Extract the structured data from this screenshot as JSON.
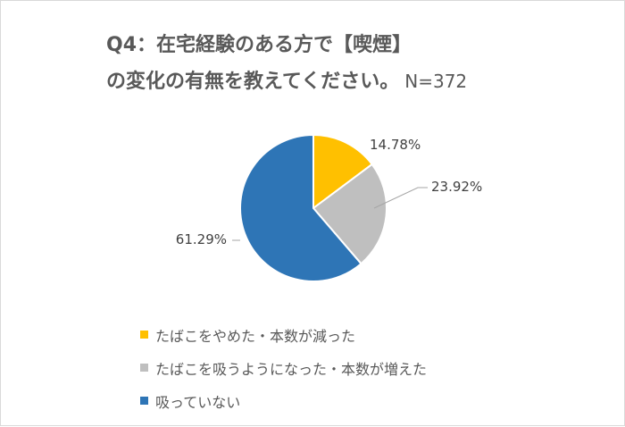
{
  "title": {
    "line1": "Q4：在宅経験のある方で【喫煙】",
    "line2": "の変化の有無を教えてください。",
    "n": "N=372"
  },
  "chart_data": {
    "type": "pie",
    "categories": [
      "たばこをやめた・本数が減った",
      "たばこを吸うようになった・本数が増えた",
      "吸っていない"
    ],
    "values": [
      14.78,
      23.92,
      61.29
    ],
    "data_labels": [
      "14.78%",
      "23.92%",
      "61.29%"
    ],
    "colors": [
      "#FFC000",
      "#BFBFBF",
      "#2E75B6"
    ],
    "legend_position": "bottom-left"
  }
}
